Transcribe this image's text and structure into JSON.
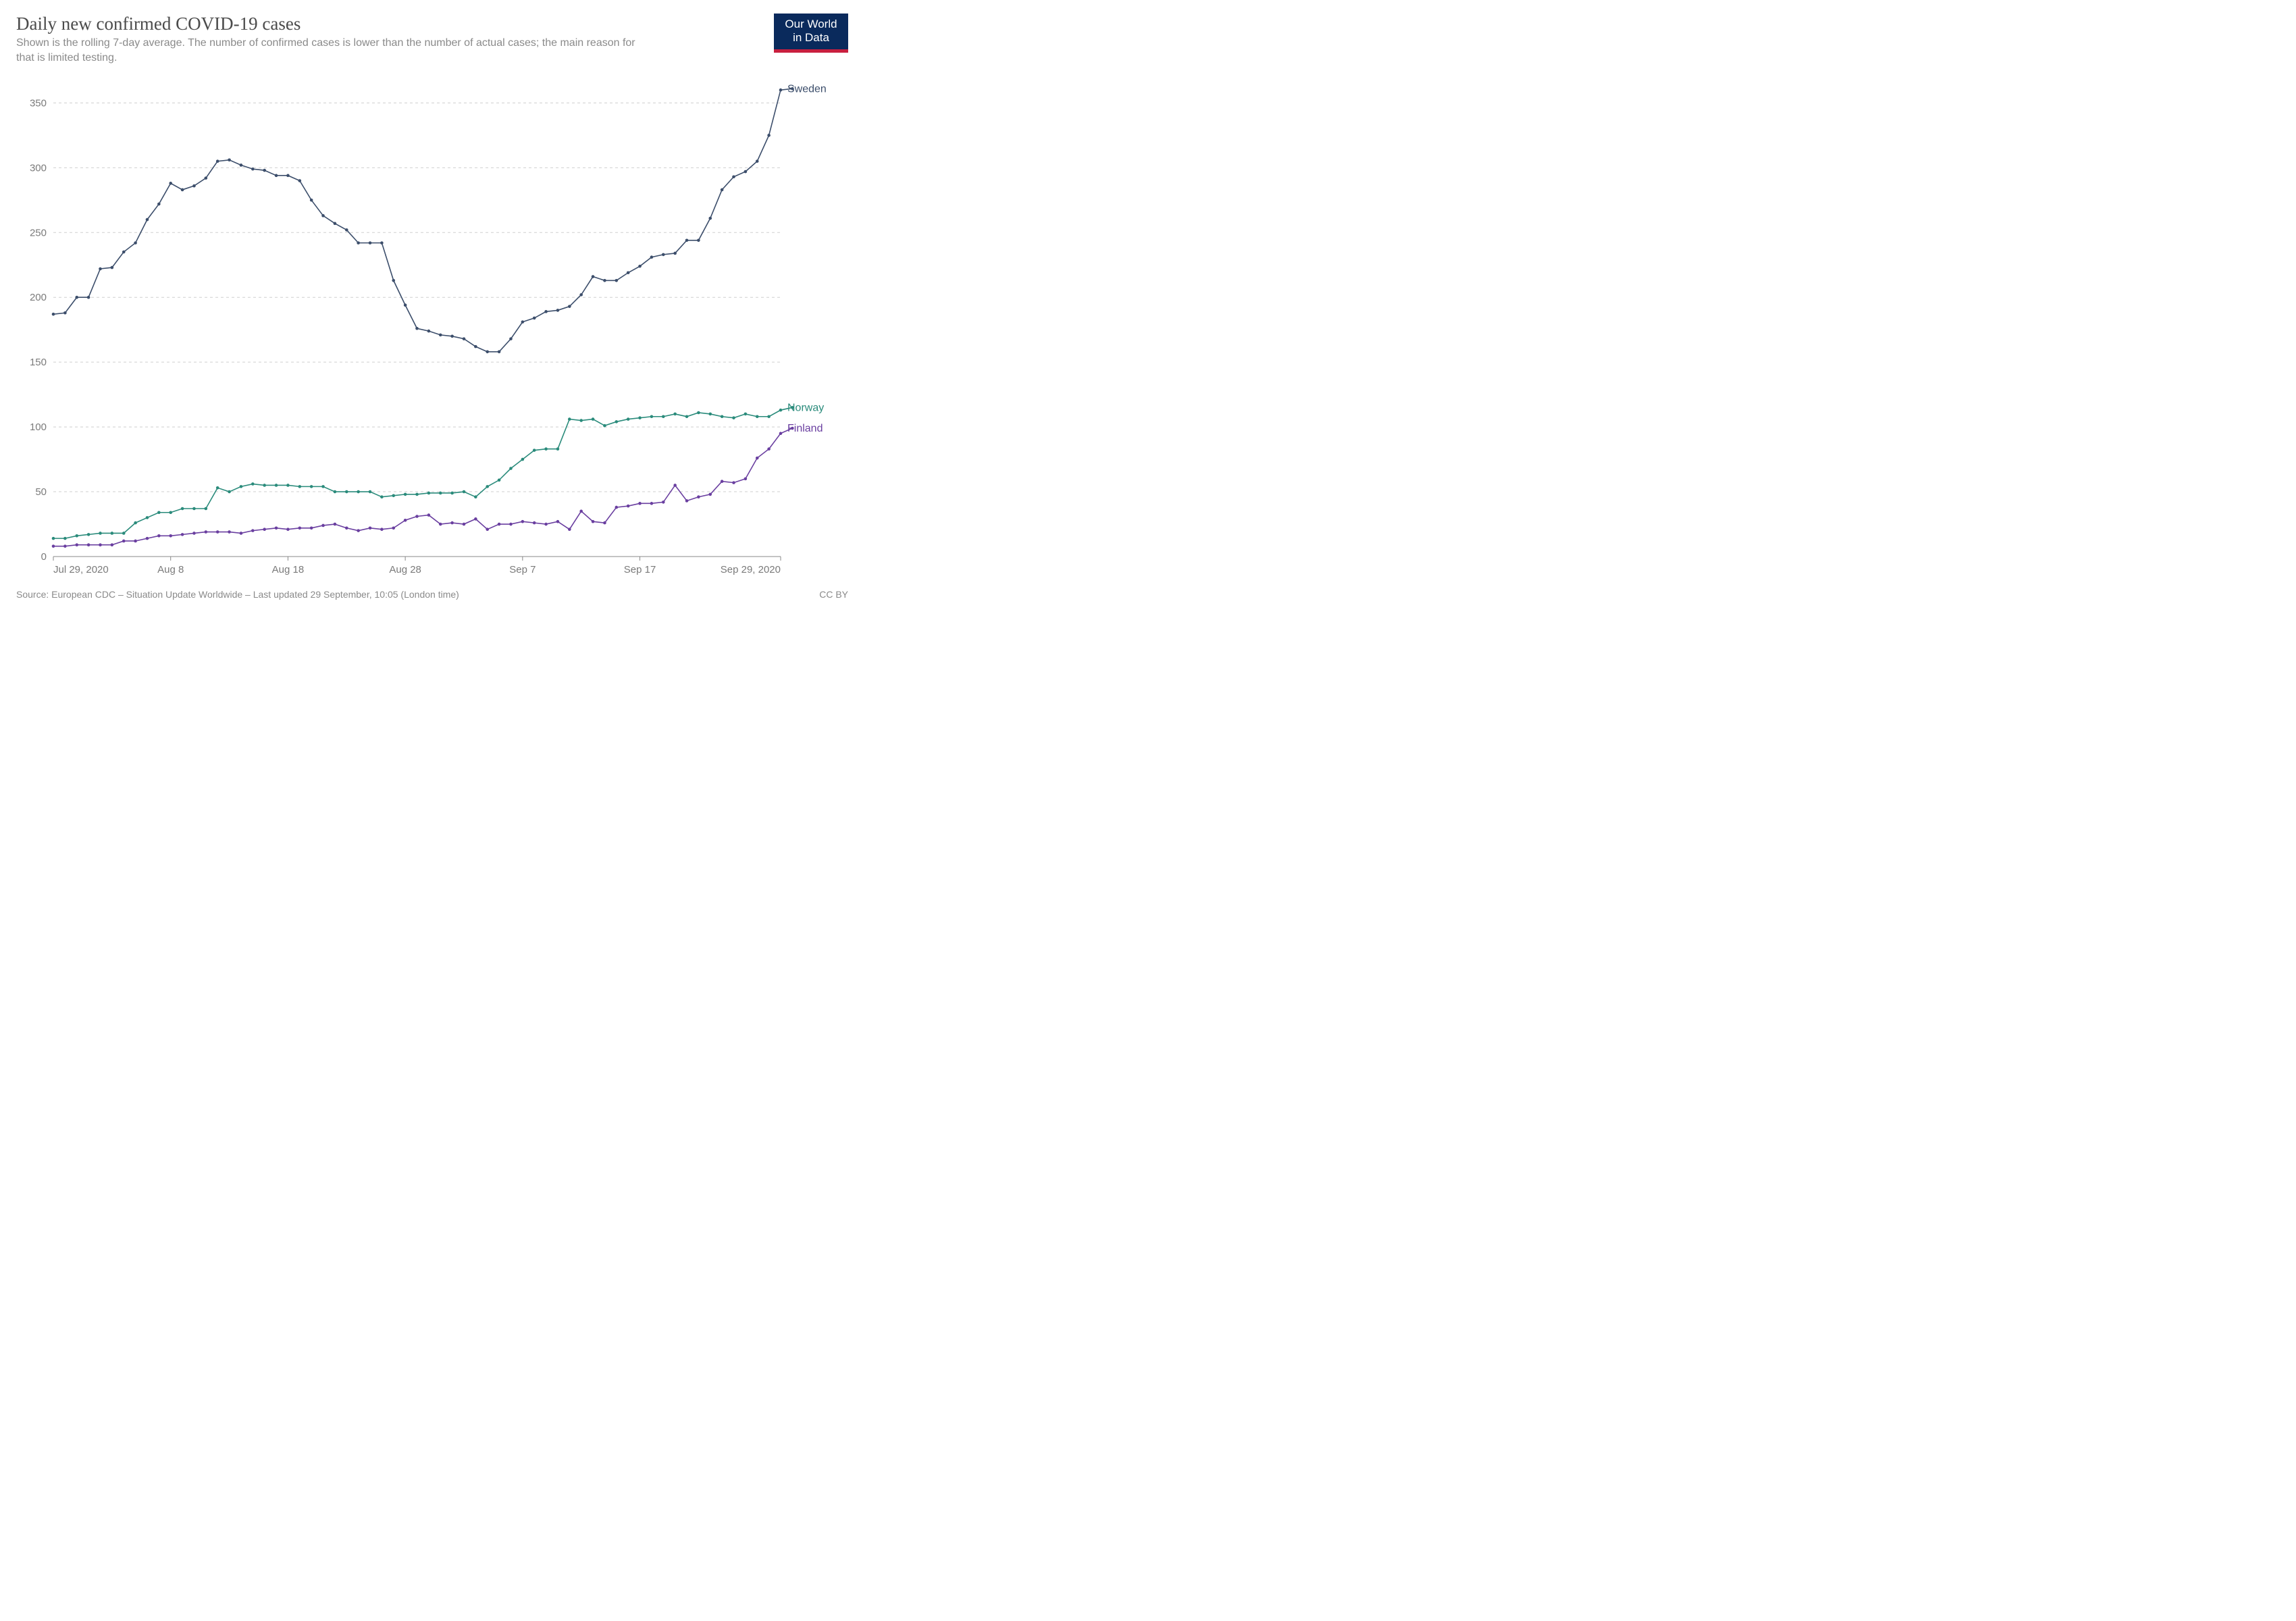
{
  "header": {
    "title": "Daily new confirmed COVID-19 cases",
    "subtitle": "Shown is the rolling 7-day average. The number of confirmed cases is lower than the number of actual cases; the main reason for that is limited testing.",
    "logo_line1": "Our World",
    "logo_line2": "in Data"
  },
  "chart": {
    "type": "line",
    "background_color": "#ffffff",
    "grid_color": "#cfcfcf",
    "axis_color": "#888888",
    "tick_color": "#7a7a7a",
    "tick_fontsize": 15,
    "series_label_fontsize": 16,
    "dot_radius": 2.3,
    "line_width": 1.6,
    "x": {
      "min": 0,
      "max": 62,
      "tick_positions": [
        0,
        10,
        20,
        30,
        40,
        50,
        62
      ],
      "tick_labels": [
        "Jul 29, 2020",
        "Aug 8",
        "Aug 18",
        "Aug 28",
        "Sep 7",
        "Sep 17",
        "Sep 29, 2020"
      ]
    },
    "y": {
      "min": 0,
      "max": 370,
      "ticks": [
        0,
        50,
        100,
        150,
        200,
        250,
        300,
        350
      ]
    },
    "series": [
      {
        "name": "Sweden",
        "color": "#3c4e6b",
        "label": "Sweden",
        "values": [
          187,
          188,
          200,
          200,
          222,
          223,
          235,
          242,
          260,
          272,
          288,
          283,
          286,
          292,
          305,
          306,
          302,
          299,
          298,
          294,
          294,
          290,
          275,
          263,
          257,
          252,
          242,
          242,
          242,
          213,
          194,
          176,
          174,
          171,
          170,
          168,
          162,
          158,
          158,
          168,
          181,
          184,
          189,
          190,
          193,
          202,
          216,
          213,
          213,
          219,
          224,
          231,
          233,
          234,
          244,
          244,
          261,
          283,
          293,
          297,
          305,
          325,
          360,
          361
        ]
      },
      {
        "name": "Norway",
        "color": "#2a8b7b",
        "label": "Norway",
        "values": [
          14,
          14,
          16,
          17,
          18,
          18,
          18,
          26,
          30,
          34,
          34,
          37,
          37,
          37,
          53,
          50,
          54,
          56,
          55,
          55,
          55,
          54,
          54,
          54,
          50,
          50,
          50,
          50,
          46,
          47,
          48,
          48,
          49,
          49,
          49,
          50,
          46,
          54,
          59,
          68,
          75,
          82,
          83,
          83,
          106,
          105,
          106,
          101,
          104,
          106,
          107,
          108,
          108,
          110,
          108,
          111,
          110,
          108,
          107,
          110,
          108,
          108,
          113,
          115
        ]
      },
      {
        "name": "Finland",
        "color": "#6a3fa0",
        "label": "Finland",
        "values": [
          8,
          8,
          9,
          9,
          9,
          9,
          12,
          12,
          14,
          16,
          16,
          17,
          18,
          19,
          19,
          19,
          18,
          20,
          21,
          22,
          21,
          22,
          22,
          24,
          25,
          22,
          20,
          22,
          21,
          22,
          28,
          31,
          32,
          25,
          26,
          25,
          29,
          21,
          25,
          25,
          27,
          26,
          25,
          27,
          21,
          35,
          27,
          26,
          38,
          39,
          41,
          41,
          42,
          55,
          43,
          46,
          48,
          58,
          57,
          60,
          76,
          83,
          95,
          99
        ]
      }
    ]
  },
  "footer": {
    "source": "Source: European CDC – Situation Update Worldwide – Last updated 29 September, 10:05 (London time)",
    "license": "CC BY"
  }
}
